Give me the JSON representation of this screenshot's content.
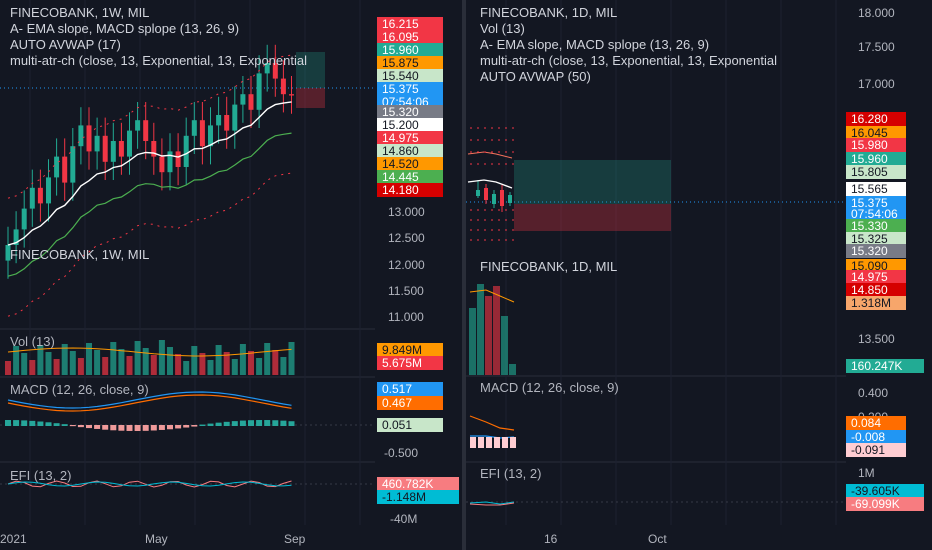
{
  "left": {
    "legend": [
      "FINECOBANK, 1W, MIL",
      "A- EMA slope, MACD splope (13, 26, 9)",
      "AUTO AVWAP (17)",
      "multi-atr-ch (close, 13, Exponential, 13, Exponential"
    ],
    "vol_label": "Vol (13)",
    "macd_label": "MACD (12, 26, close, 9)",
    "efi_label": "EFI (13, 2)",
    "price_axis": [
      "13.000",
      "12.500",
      "12.000",
      "11.500",
      "11.000"
    ],
    "sub_axis": [
      "-0.500",
      "-40M"
    ],
    "time_axis": [
      "2021",
      "May",
      "Sep"
    ],
    "price_tags": [
      {
        "text": "16.215",
        "color": "#f23645",
        "tc": "#ffffff"
      },
      {
        "text": "16.095",
        "color": "#f23645",
        "tc": "#ffffff"
      },
      {
        "text": "15.960",
        "color": "#22ab94",
        "tc": "#ffffff"
      },
      {
        "text": "15.875",
        "color": "#ff9800",
        "tc": "#131722"
      },
      {
        "text": "15.540",
        "color": "#c8e6c9",
        "tc": "#131722"
      },
      {
        "text": "15.375",
        "color": "#2196f3",
        "tc": "#ffffff"
      },
      {
        "text": "07:54:06",
        "color": "#2196f3",
        "tc": "#ffffff"
      },
      {
        "text": "15.320",
        "color": "#787b86",
        "tc": "#ffffff"
      },
      {
        "text": "15.200",
        "color": "#ffffff",
        "tc": "#131722"
      },
      {
        "text": "14.975",
        "color": "#f23645",
        "tc": "#ffffff"
      },
      {
        "text": "14.860",
        "color": "#c8e6c9",
        "tc": "#131722"
      },
      {
        "text": "14.520",
        "color": "#ff9800",
        "tc": "#131722"
      },
      {
        "text": "14.445",
        "color": "#4caf50",
        "tc": "#ffffff"
      },
      {
        "text": "14.180",
        "color": "#d50000",
        "tc": "#ffffff"
      }
    ],
    "vol_tags": [
      {
        "text": "9.849M",
        "color": "#ff9800",
        "tc": "#131722"
      },
      {
        "text": "5.675M",
        "color": "#f23645",
        "tc": "#ffffff"
      }
    ],
    "macd_tags": [
      {
        "text": "0.517",
        "color": "#2196f3",
        "tc": "#ffffff"
      },
      {
        "text": "0.467",
        "color": "#ff6d00",
        "tc": "#ffffff"
      },
      {
        "text": "0.051",
        "color": "#c8e6c9",
        "tc": "#131722"
      }
    ],
    "efi_tags": [
      {
        "text": "460.782K",
        "color": "#f77c80",
        "tc": "#ffffff"
      },
      {
        "text": "-1.148M",
        "color": "#00bcd4",
        "tc": "#131722"
      }
    ]
  },
  "right": {
    "legend": [
      "FINECOBANK, 1D, MIL",
      "Vol (13)",
      "A- EMA slope, MACD splope (13, 26, 9)",
      "multi-atr-ch (close, 13, Exponential, 13, Exponential",
      "AUTO AVWAP (50)"
    ],
    "lower_legend": "FINECOBANK, 1D, MIL",
    "macd_label": "MACD (12, 26, close, 9)",
    "efi_label": "EFI (13, 2)",
    "price_axis": [
      "18.000",
      "17.500",
      "17.000",
      "13.500"
    ],
    "sub_axis": [
      "0.400",
      "0.200",
      "1M"
    ],
    "time_axis": [
      "16",
      "Oct"
    ],
    "price_tags": [
      {
        "text": "16.280",
        "color": "#d50000",
        "tc": "#ffffff"
      },
      {
        "text": "16.045",
        "color": "#ff9800",
        "tc": "#131722"
      },
      {
        "text": "15.980",
        "color": "#f23645",
        "tc": "#ffffff"
      },
      {
        "text": "15.960",
        "color": "#22ab94",
        "tc": "#ffffff"
      },
      {
        "text": "15.805",
        "color": "#c8e6c9",
        "tc": "#131722"
      },
      {
        "text": "15.565",
        "color": "#ffffff",
        "tc": "#131722"
      },
      {
        "text": "15.375",
        "color": "#2196f3",
        "tc": "#ffffff"
      },
      {
        "text": "07:54:06",
        "color": "#2196f3",
        "tc": "#ffffff"
      },
      {
        "text": "15.330",
        "color": "#4caf50",
        "tc": "#ffffff"
      },
      {
        "text": "15.325",
        "color": "#c8e6c9",
        "tc": "#131722"
      },
      {
        "text": "15.320",
        "color": "#787b86",
        "tc": "#ffffff"
      },
      {
        "text": "15.090",
        "color": "#ff9800",
        "tc": "#131722"
      },
      {
        "text": "14.975",
        "color": "#f23645",
        "tc": "#ffffff"
      },
      {
        "text": "14.850",
        "color": "#d50000",
        "tc": "#ffffff"
      },
      {
        "text": "1.318M",
        "color": "#f7a66b",
        "tc": "#131722"
      }
    ],
    "vol_tags": [
      {
        "text": "160.247K",
        "color": "#22ab94",
        "tc": "#ffffff"
      }
    ],
    "macd_tags": [
      {
        "text": "0.084",
        "color": "#ff6d00",
        "tc": "#ffffff"
      },
      {
        "text": "-0.008",
        "color": "#2196f3",
        "tc": "#ffffff"
      },
      {
        "text": "-0.091",
        "color": "#ffcdd2",
        "tc": "#131722"
      }
    ],
    "efi_tags": [
      {
        "text": "-39.605K",
        "color": "#00bcd4",
        "tc": "#131722"
      },
      {
        "text": "-69.099K",
        "color": "#f77c80",
        "tc": "#ffffff"
      }
    ]
  },
  "chart_data": [
    {
      "type": "candlestick",
      "title": "FINECOBANK, 1W, MIL",
      "x_labels": [
        "2021",
        "May",
        "Sep"
      ],
      "ylim": [
        10.9,
        16.4
      ],
      "close_approx": [
        12.5,
        12.8,
        13.2,
        13.6,
        13.3,
        13.8,
        14.2,
        13.7,
        14.4,
        14.8,
        14.3,
        14.6,
        14.1,
        14.5,
        14.2,
        14.7,
        14.9,
        14.5,
        14.2,
        13.9,
        14.3,
        14.0,
        14.6,
        14.9,
        14.4,
        14.8,
        15.0,
        14.7,
        15.2,
        15.4,
        15.1,
        15.8,
        16.0,
        15.7,
        15.4,
        15.375
      ],
      "last": 15.375
    },
    {
      "type": "candlestick",
      "title": "FINECOBANK, 1D, MIL",
      "x_labels": [
        "16",
        "Oct"
      ],
      "last": 15.375
    }
  ]
}
